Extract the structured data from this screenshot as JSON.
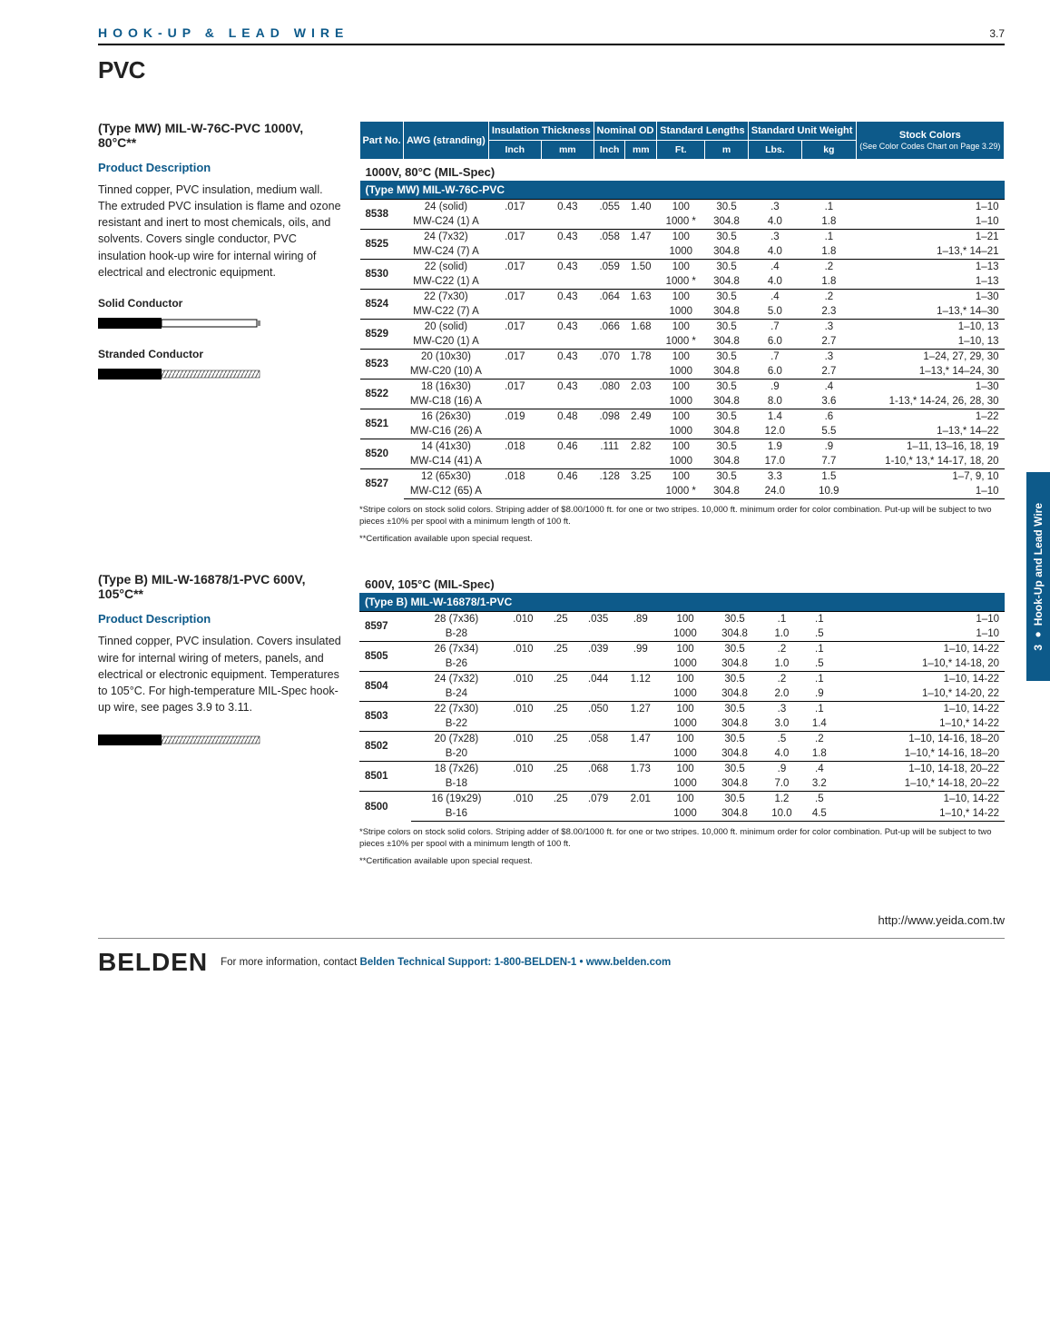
{
  "header": {
    "breadcrumb": "HOOK-UP & LEAD WIRE",
    "page_number": "3.7"
  },
  "title": "PVC",
  "side_tab": "3 ● Hook-Up and Lead Wire",
  "section1": {
    "type_title": "(Type MW) MIL-W-76C-PVC 1000V, 80°C**",
    "pd_header": "Product Description",
    "pd_body": "Tinned copper, PVC insulation, medium wall. The extruded PVC insulation is flame and ozone resistant and inert to most chemicals, oils, and solvents. Covers single conductor, PVC insulation hook-up wire for internal wiring of electrical and electronic equipment.",
    "solid_label": "Solid Conductor",
    "stranded_label": "Stranded Conductor",
    "pretitle": "1000V, 80°C (MIL-Spec)",
    "band": "(Type MW) MIL-W-76C-PVC",
    "footnote1": "*Stripe colors on stock solid colors. Striping adder of $8.00/1000 ft. for one or two stripes. 10,000 ft. minimum order for color combination. Put-up will be subject to two pieces ±10% per spool with a minimum length of 100 ft.",
    "footnote2": "**Certification available upon special request."
  },
  "section2": {
    "type_title": "(Type B) MIL-W-16878/1-PVC 600V, 105°C**",
    "pd_header": "Product Description",
    "pd_body": "Tinned copper, PVC insulation. Covers insulated wire for internal wiring of meters, panels, and electrical or electronic equipment. Temperatures to 105°C. For high-temperature MIL-Spec hook-up wire, see pages 3.9 to 3.11.",
    "pretitle": "600V, 105°C (MIL-Spec)",
    "band": "(Type B) MIL-W-16878/1-PVC",
    "footnote1": "*Stripe colors on stock solid colors. Striping adder of $8.00/1000 ft. for one or two stripes. 10,000 ft. minimum order for color combination. Put-up will be subject to two pieces ±10% per spool with a minimum length of 100 ft.",
    "footnote2": "**Certification available upon special request."
  },
  "thead": {
    "part_no": "Part No.",
    "awg": "AWG (stranding)",
    "ins": "Insulation Thickness",
    "nod": "Nominal OD",
    "stdlen": "Standard Lengths",
    "stdwt": "Standard Unit Weight",
    "stock": "Stock Colors",
    "stock_sub": "(See Color Codes Chart on Page 3.29)",
    "inch": "Inch",
    "mm": "mm",
    "ft": "Ft.",
    "m": "m",
    "lbs": "Lbs.",
    "kg": "kg"
  },
  "tableA": [
    {
      "pn": "8538",
      "awg": "24 (solid)",
      "sub": "MW-C24 (1) A",
      "in": ".017",
      "mm": "0.43",
      "odin": ".055",
      "odmm": "1.40",
      "r": [
        {
          "ft": "100",
          "m": "30.5",
          "lb": ".3",
          "kg": ".1",
          "col": "1–10"
        },
        {
          "ft": "1000 *",
          "m": "304.8",
          "lb": "4.0",
          "kg": "1.8",
          "col": "1–10"
        }
      ]
    },
    {
      "pn": "8525",
      "awg": "24 (7x32)",
      "sub": "MW-C24 (7) A",
      "in": ".017",
      "mm": "0.43",
      "odin": ".058",
      "odmm": "1.47",
      "r": [
        {
          "ft": "100",
          "m": "30.5",
          "lb": ".3",
          "kg": ".1",
          "col": "1–21"
        },
        {
          "ft": "1000",
          "m": "304.8",
          "lb": "4.0",
          "kg": "1.8",
          "col": "1–13,* 14–21"
        }
      ]
    },
    {
      "pn": "8530",
      "awg": "22 (solid)",
      "sub": "MW-C22 (1) A",
      "in": ".017",
      "mm": "0.43",
      "odin": ".059",
      "odmm": "1.50",
      "r": [
        {
          "ft": "100",
          "m": "30.5",
          "lb": ".4",
          "kg": ".2",
          "col": "1–13"
        },
        {
          "ft": "1000 *",
          "m": "304.8",
          "lb": "4.0",
          "kg": "1.8",
          "col": "1–13"
        }
      ]
    },
    {
      "pn": "8524",
      "awg": "22 (7x30)",
      "sub": "MW-C22 (7) A",
      "in": ".017",
      "mm": "0.43",
      "odin": ".064",
      "odmm": "1.63",
      "r": [
        {
          "ft": "100",
          "m": "30.5",
          "lb": ".4",
          "kg": ".2",
          "col": "1–30"
        },
        {
          "ft": "1000",
          "m": "304.8",
          "lb": "5.0",
          "kg": "2.3",
          "col": "1–13,* 14–30"
        }
      ]
    },
    {
      "pn": "8529",
      "awg": "20 (solid)",
      "sub": "MW-C20 (1) A",
      "in": ".017",
      "mm": "0.43",
      "odin": ".066",
      "odmm": "1.68",
      "r": [
        {
          "ft": "100",
          "m": "30.5",
          "lb": ".7",
          "kg": ".3",
          "col": "1–10, 13"
        },
        {
          "ft": "1000 *",
          "m": "304.8",
          "lb": "6.0",
          "kg": "2.7",
          "col": "1–10, 13"
        }
      ]
    },
    {
      "pn": "8523",
      "awg": "20 (10x30)",
      "sub": "MW-C20 (10) A",
      "in": ".017",
      "mm": "0.43",
      "odin": ".070",
      "odmm": "1.78",
      "r": [
        {
          "ft": "100",
          "m": "30.5",
          "lb": ".7",
          "kg": ".3",
          "col": "1–24, 27, 29, 30"
        },
        {
          "ft": "1000",
          "m": "304.8",
          "lb": "6.0",
          "kg": "2.7",
          "col": "1–13,* 14–24, 30"
        }
      ]
    },
    {
      "pn": "8522",
      "awg": "18 (16x30)",
      "sub": "MW-C18 (16) A",
      "in": ".017",
      "mm": "0.43",
      "odin": ".080",
      "odmm": "2.03",
      "r": [
        {
          "ft": "100",
          "m": "30.5",
          "lb": ".9",
          "kg": ".4",
          "col": "1–30"
        },
        {
          "ft": "1000",
          "m": "304.8",
          "lb": "8.0",
          "kg": "3.6",
          "col": "1-13,* 14-24, 26, 28, 30"
        }
      ]
    },
    {
      "pn": "8521",
      "awg": "16 (26x30)",
      "sub": "MW-C16 (26) A",
      "in": ".019",
      "mm": "0.48",
      "odin": ".098",
      "odmm": "2.49",
      "r": [
        {
          "ft": "100",
          "m": "30.5",
          "lb": "1.4",
          "kg": ".6",
          "col": "1–22"
        },
        {
          "ft": "1000",
          "m": "304.8",
          "lb": "12.0",
          "kg": "5.5",
          "col": "1–13,* 14–22"
        }
      ]
    },
    {
      "pn": "8520",
      "awg": "14 (41x30)",
      "sub": "MW-C14 (41) A",
      "in": ".018",
      "mm": "0.46",
      "odin": ".111",
      "odmm": "2.82",
      "r": [
        {
          "ft": "100",
          "m": "30.5",
          "lb": "1.9",
          "kg": ".9",
          "col": "1–11, 13–16, 18, 19"
        },
        {
          "ft": "1000",
          "m": "304.8",
          "lb": "17.0",
          "kg": "7.7",
          "col": "1-10,* 13,* 14-17, 18, 20"
        }
      ]
    },
    {
      "pn": "8527",
      "awg": "12 (65x30)",
      "sub": "MW-C12 (65) A",
      "in": ".018",
      "mm": "0.46",
      "odin": ".128",
      "odmm": "3.25",
      "r": [
        {
          "ft": "100",
          "m": "30.5",
          "lb": "3.3",
          "kg": "1.5",
          "col": "1–7, 9, 10"
        },
        {
          "ft": "1000 *",
          "m": "304.8",
          "lb": "24.0",
          "kg": "10.9",
          "col": "1–10"
        }
      ]
    }
  ],
  "tableB": [
    {
      "pn": "8597",
      "awg": "28 (7x36)",
      "sub": "B-28",
      "in": ".010",
      "mm": ".25",
      "odin": ".035",
      "odmm": ".89",
      "r": [
        {
          "ft": "100",
          "m": "30.5",
          "lb": ".1",
          "kg": ".1",
          "col": "1–10"
        },
        {
          "ft": "1000",
          "m": "304.8",
          "lb": "1.0",
          "kg": ".5",
          "col": "1–10"
        }
      ]
    },
    {
      "pn": "8505",
      "awg": "26 (7x34)",
      "sub": "B-26",
      "in": ".010",
      "mm": ".25",
      "odin": ".039",
      "odmm": ".99",
      "r": [
        {
          "ft": "100",
          "m": "30.5",
          "lb": ".2",
          "kg": ".1",
          "col": "1–10, 14-22"
        },
        {
          "ft": "1000",
          "m": "304.8",
          "lb": "1.0",
          "kg": ".5",
          "col": "1–10,* 14-18, 20"
        }
      ]
    },
    {
      "pn": "8504",
      "awg": "24 (7x32)",
      "sub": "B-24",
      "in": ".010",
      "mm": ".25",
      "odin": ".044",
      "odmm": "1.12",
      "r": [
        {
          "ft": "100",
          "m": "30.5",
          "lb": ".2",
          "kg": ".1",
          "col": "1–10, 14-22"
        },
        {
          "ft": "1000",
          "m": "304.8",
          "lb": "2.0",
          "kg": ".9",
          "col": "1–10,* 14-20, 22"
        }
      ]
    },
    {
      "pn": "8503",
      "awg": "22 (7x30)",
      "sub": "B-22",
      "in": ".010",
      "mm": ".25",
      "odin": ".050",
      "odmm": "1.27",
      "r": [
        {
          "ft": "100",
          "m": "30.5",
          "lb": ".3",
          "kg": ".1",
          "col": "1–10, 14-22"
        },
        {
          "ft": "1000",
          "m": "304.8",
          "lb": "3.0",
          "kg": "1.4",
          "col": "1–10,* 14-22"
        }
      ]
    },
    {
      "pn": "8502",
      "awg": "20 (7x28)",
      "sub": "B-20",
      "in": ".010",
      "mm": ".25",
      "odin": ".058",
      "odmm": "1.47",
      "r": [
        {
          "ft": "100",
          "m": "30.5",
          "lb": ".5",
          "kg": ".2",
          "col": "1–10, 14-16, 18–20"
        },
        {
          "ft": "1000",
          "m": "304.8",
          "lb": "4.0",
          "kg": "1.8",
          "col": "1–10,* 14-16, 18–20"
        }
      ]
    },
    {
      "pn": "8501",
      "awg": "18 (7x26)",
      "sub": "B-18",
      "in": ".010",
      "mm": ".25",
      "odin": ".068",
      "odmm": "1.73",
      "r": [
        {
          "ft": "100",
          "m": "30.5",
          "lb": ".9",
          "kg": ".4",
          "col": "1–10, 14-18, 20–22"
        },
        {
          "ft": "1000",
          "m": "304.8",
          "lb": "7.0",
          "kg": "3.2",
          "col": "1–10,* 14-18, 20–22"
        }
      ]
    },
    {
      "pn": "8500",
      "awg": "16 (19x29)",
      "sub": "B-16",
      "in": ".010",
      "mm": ".25",
      "odin": ".079",
      "odmm": "2.01",
      "r": [
        {
          "ft": "100",
          "m": "30.5",
          "lb": "1.2",
          "kg": ".5",
          "col": "1–10, 14-22"
        },
        {
          "ft": "1000",
          "m": "304.8",
          "lb": "10.0",
          "kg": "4.5",
          "col": "1–10,* 14-22"
        }
      ]
    }
  ],
  "url": "http://www.yeida.com.tw",
  "footer": {
    "logo": "BELDEN",
    "lead": "For more information, contact ",
    "mid": "Belden Technical Support: ",
    "phone": "1-800-BELDEN-1",
    "sep": " • ",
    "site": "www.belden.com"
  },
  "colors": {
    "brand": "#0d5a8a"
  }
}
